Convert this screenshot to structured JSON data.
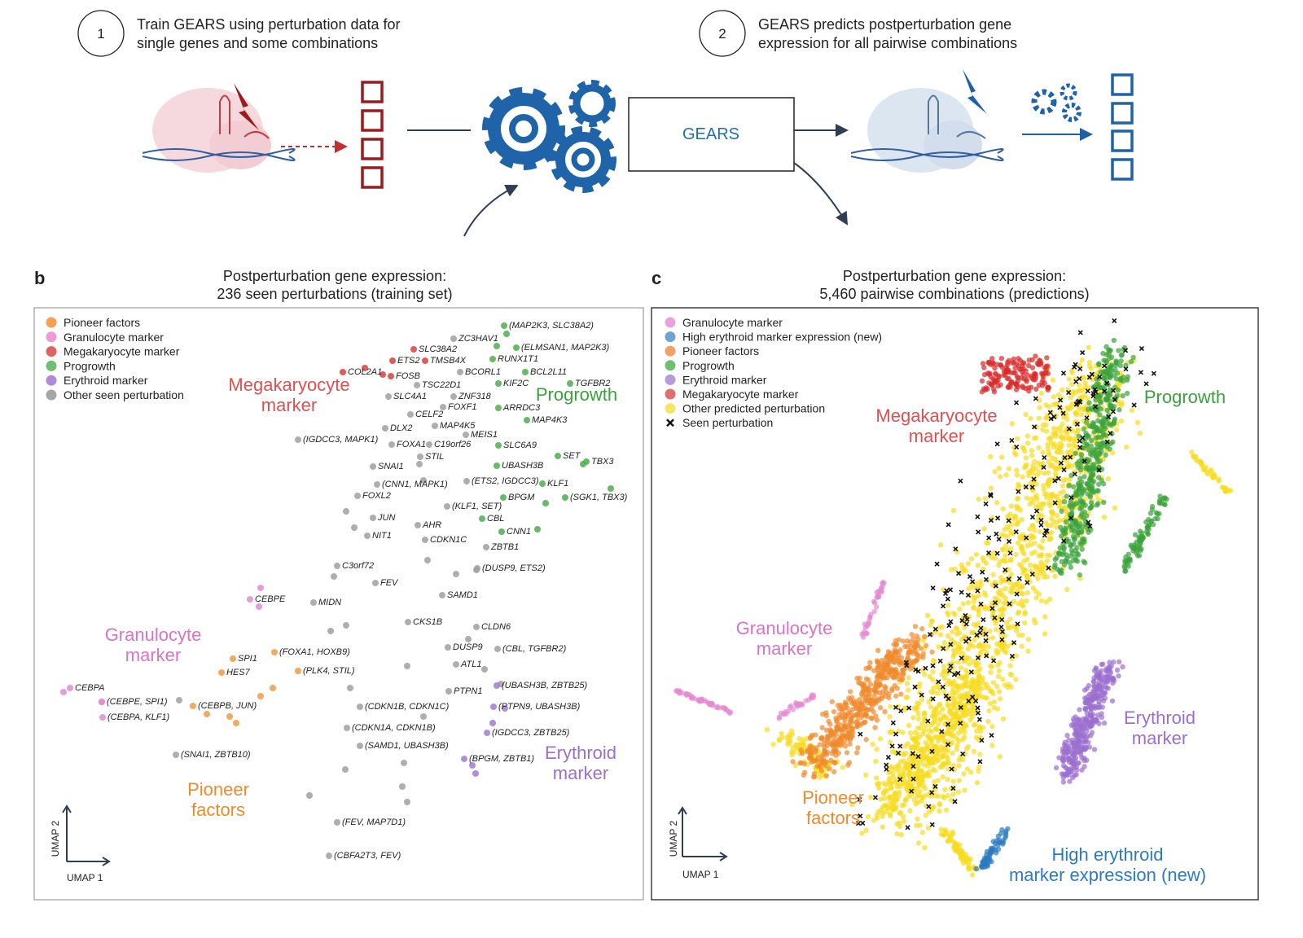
{
  "step1": {
    "number": "1",
    "text": [
      "Train GEARS using perturbation data for",
      "single genes and some combinations"
    ]
  },
  "step2": {
    "number": "2",
    "text": [
      "GEARS predicts postperturbation gene",
      "expression for all pairwise combinations"
    ]
  },
  "model_label": "GEARS",
  "panel_b": {
    "letter": "b",
    "title": [
      "Postperturbation gene expression:",
      "236 seen perturbations (training set)"
    ],
    "legend": [
      {
        "name": "Pioneer factors",
        "color": "#f5a055"
      },
      {
        "name": "Granulocyte marker",
        "color": "#ec9ad8"
      },
      {
        "name": "Megakaryocyte marker",
        "color": "#de6464"
      },
      {
        "name": "Progrowth",
        "color": "#6cc070"
      },
      {
        "name": "Erythroid marker",
        "color": "#ae8ad8"
      },
      {
        "name": "Other seen perturbation",
        "color": "#a6a6a6"
      }
    ],
    "cluster_labels": [
      {
        "text": [
          "Megakaryocyte",
          "marker"
        ],
        "color": "#e05050"
      },
      {
        "text": [
          "Progrowth"
        ],
        "color": "#3aa23a"
      },
      {
        "text": [
          "Granulocyte",
          "marker"
        ],
        "color": "#d974c3"
      },
      {
        "text": [
          "Pioneer",
          "factors"
        ],
        "color": "#f08a2a"
      },
      {
        "text": [
          "Erythroid",
          "marker"
        ],
        "color": "#9b6fce"
      }
    ],
    "gene_labels": [
      "(MAP2K3, SLC38A2)",
      "ZC3HAV1",
      "(ELMSAN1, MAP2K3)",
      "SLC38A2",
      "RUNX1T1",
      "ETS2",
      "TMSB4X",
      "COL2A1",
      "BCL2L11",
      "FOSB",
      "BCORL1",
      "KIF2C",
      "TGFBR2",
      "TSC22D1",
      "SLC4A1",
      "ZNF318",
      "FOXF1",
      "ARRDC3",
      "CELF2",
      "MAP4K3",
      "DLX2",
      "MAP4K5",
      "(IGDCC3, MAPK1)",
      "MEIS1",
      "FOXA1",
      "C19orf26",
      "SLC6A9",
      "STIL",
      "SET",
      "TBX3",
      "SNAI1",
      "UBASH3B",
      "(ETS2, IGDCC3)",
      "(CNN1, MAPK1)",
      "KLF1",
      "FOXL2",
      "BPGM",
      "(SGK1, TBX3)",
      "(KLF1, SET)",
      "JUN",
      "CBL",
      "AHR",
      "CNN1",
      "NIT1",
      "CDKN1C",
      "ZBTB1",
      "C3orf72",
      "(DUSP9, ETS2)",
      "FEV",
      "SAMD1",
      "CEBPE",
      "MIDN",
      "CKS1B",
      "CLDN6",
      "DUSP9",
      "(CBL, TGFBR2)",
      "SPI1",
      "(FOXA1, HOXB9)",
      "ATL1",
      "HES7",
      "(PLK4, STIL)",
      "(UBASH3B, ZBTB25)",
      "CEBPA",
      "PTPN1",
      "(CEBPE, SPI1)",
      "(CDKN1B, CDKN1C)",
      "(PTPN9, UBASH3B)",
      "(CEBPB, JUN)",
      "(CEBPA, KLF1)",
      "(CDKN1A, CDKN1B)",
      "(IGDCC3, ZBTB25)",
      "(SAMD1, UBASH3B)",
      "(BPGM, ZBTB1)",
      "(SNAI1, ZBTB10)",
      "(FEV, MAP7D1)",
      "(CBFA2T3, FEV)"
    ],
    "xlabel": "UMAP 1",
    "ylabel": "UMAP 2"
  },
  "panel_c": {
    "letter": "c",
    "title": [
      "Postperturbation gene expression:",
      "5,460 pairwise combinations (predictions)"
    ],
    "legend": [
      {
        "name": "Granulocyte marker",
        "color": "#e9a3d8"
      },
      {
        "name": "High erythroid marker expression (new)",
        "color": "#6fa3d0"
      },
      {
        "name": "Pioneer factors",
        "color": "#f2a16a"
      },
      {
        "name": "Progrowth",
        "color": "#6cc070"
      },
      {
        "name": "Erythroid marker",
        "color": "#b99ad8"
      },
      {
        "name": "Megakaryocyte marker",
        "color": "#e07070"
      },
      {
        "name": "Other predicted perturbation",
        "color": "#f5e56b"
      },
      {
        "name": "Seen perturbation",
        "color": "#111111"
      }
    ],
    "cluster_labels": [
      {
        "text": [
          "Megakaryocyte",
          "marker"
        ],
        "color": "#e05050"
      },
      {
        "text": [
          "Progrowth"
        ],
        "color": "#3aa23a"
      },
      {
        "text": [
          "Granulocyte",
          "marker"
        ],
        "color": "#d974c3"
      },
      {
        "text": [
          "Erythroid",
          "marker"
        ],
        "color": "#9b6fce"
      },
      {
        "text": [
          "Pioneer",
          "factors"
        ],
        "color": "#f08a2a"
      },
      {
        "text": [
          "High erythroid",
          "marker expression (new)"
        ],
        "color": "#2b7bc0"
      }
    ],
    "xlabel": "UMAP 1",
    "ylabel": "UMAP 2"
  }
}
